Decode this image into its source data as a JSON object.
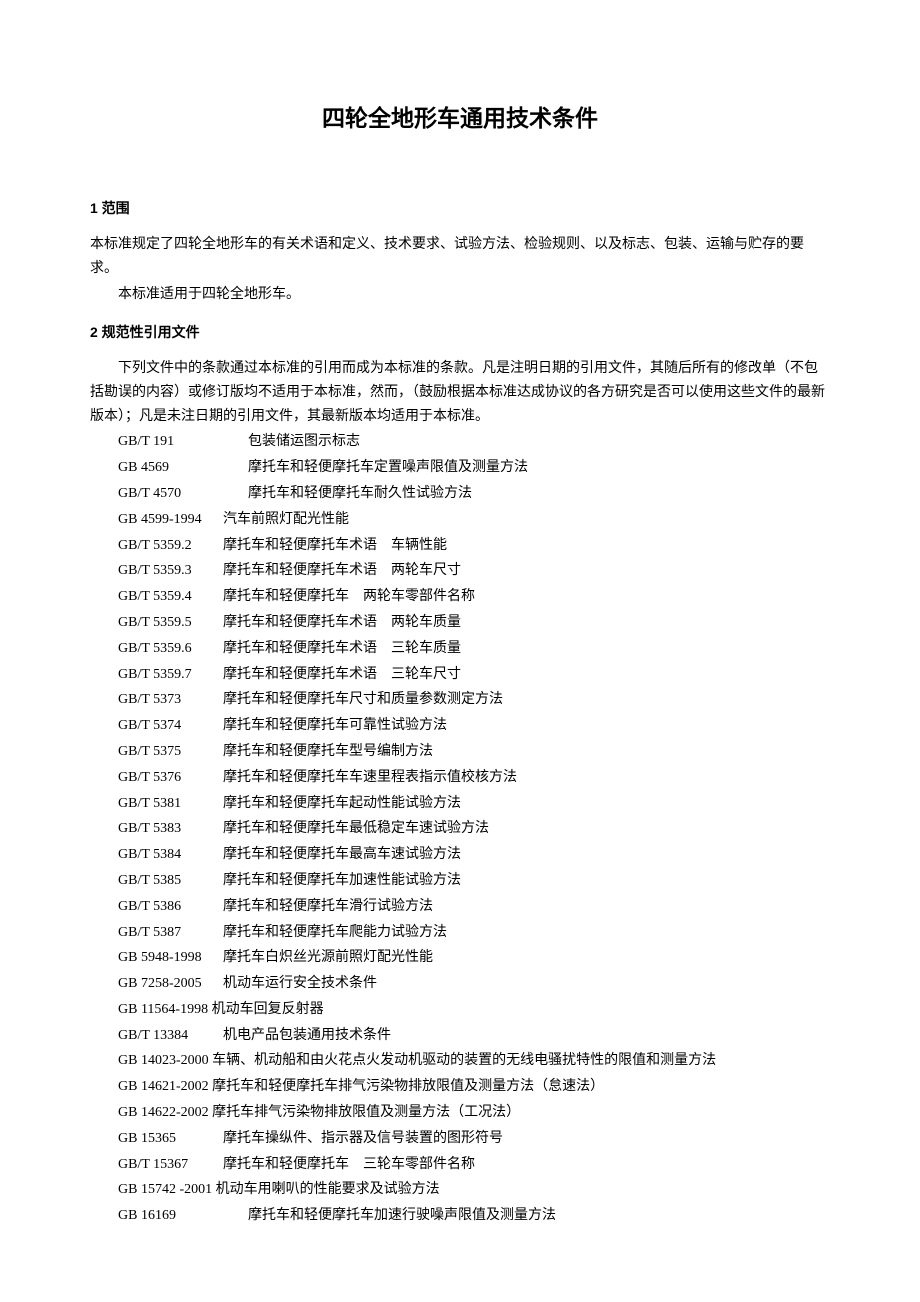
{
  "title": "四轮全地形车通用技术条件",
  "section1": {
    "heading": "1 范围",
    "para1": "本标准规定了四轮全地形车的有关术语和定义、技术要求、试验方法、检验规则、以及标志、包装、运输与贮存的要求。",
    "para2": "本标准适用于四轮全地形车。"
  },
  "section2": {
    "heading": "2 规范性引用文件",
    "para1": "下列文件中的条款通过本标准的引用而成为本标准的条款。凡是注明日期的引用文件，其随后所有的修改单（不包括勘误的内容）或修订版均不适用于本标准，然而，（鼓励根据本标准达成协议的各方研究是否可以使用这些文件的最新版本）；凡是未注日期的引用文件，其最新版本均适用于本标准。",
    "references": [
      {
        "code": "GB/T 191",
        "desc": "包装储运图示标志",
        "wide": true
      },
      {
        "code": "GB 4569",
        "desc": "摩托车和轻便摩托车定置噪声限值及测量方法",
        "wide": true
      },
      {
        "code": "GB/T 4570",
        "desc": "摩托车和轻便摩托车耐久性试验方法",
        "wide": true
      },
      {
        "code": "GB 4599-1994",
        "desc": "汽车前照灯配光性能"
      },
      {
        "code": "GB/T 5359.2",
        "desc": "摩托车和轻便摩托车术语　车辆性能"
      },
      {
        "code": "GB/T 5359.3",
        "desc": "摩托车和轻便摩托车术语　两轮车尺寸"
      },
      {
        "code": "GB/T 5359.4",
        "desc": "摩托车和轻便摩托车　两轮车零部件名称"
      },
      {
        "code": "GB/T 5359.5",
        "desc": "摩托车和轻便摩托车术语　两轮车质量"
      },
      {
        "code": "GB/T 5359.6",
        "desc": "摩托车和轻便摩托车术语　三轮车质量"
      },
      {
        "code": "GB/T 5359.7",
        "desc": "摩托车和轻便摩托车术语　三轮车尺寸"
      },
      {
        "code": "GB/T 5373",
        "desc": "摩托车和轻便摩托车尺寸和质量参数测定方法"
      },
      {
        "code": "GB/T 5374",
        "desc": "摩托车和轻便摩托车可靠性试验方法"
      },
      {
        "code": "GB/T 5375",
        "desc": "摩托车和轻便摩托车型号编制方法"
      },
      {
        "code": "GB/T 5376",
        "desc": "摩托车和轻便摩托车车速里程表指示值校核方法"
      },
      {
        "code": "GB/T 5381",
        "desc": "摩托车和轻便摩托车起动性能试验方法"
      },
      {
        "code": "GB/T 5383",
        "desc": "摩托车和轻便摩托车最低稳定车速试验方法"
      },
      {
        "code": "GB/T 5384",
        "desc": "摩托车和轻便摩托车最高车速试验方法"
      },
      {
        "code": "GB/T 5385",
        "desc": "摩托车和轻便摩托车加速性能试验方法"
      },
      {
        "code": "GB/T 5386",
        "desc": "摩托车和轻便摩托车滑行试验方法"
      },
      {
        "code": "GB/T 5387",
        "desc": "摩托车和轻便摩托车爬能力试验方法"
      },
      {
        "code": "GB 5948-1998",
        "desc": "摩托车白炽丝光源前照灯配光性能"
      },
      {
        "code": "GB 7258-2005",
        "desc": "机动车运行安全技术条件"
      },
      {
        "code": "GB 11564-1998",
        "desc": "机动车回复反射器",
        "nopad": true
      },
      {
        "code": "GB/T 13384",
        "desc": "机电产品包装通用技术条件"
      },
      {
        "code": "GB 14023-2000",
        "desc": "车辆、机动船和由火花点火发动机驱动的装置的无线电骚扰特性的限值和测量方法",
        "nopad": true
      },
      {
        "code": "GB 14621-2002",
        "desc": "摩托车和轻便摩托车排气污染物排放限值及测量方法（怠速法）",
        "nopad": true
      },
      {
        "code": "GB 14622-2002",
        "desc": "摩托车排气污染物排放限值及测量方法（工况法）",
        "nopad": true
      },
      {
        "code": "GB 15365",
        "desc": "摩托车操纵件、指示器及信号装置的图形符号"
      },
      {
        "code": "GB/T 15367",
        "desc": "摩托车和轻便摩托车　三轮车零部件名称"
      },
      {
        "code": "GB 15742 -2001",
        "desc": "机动车用喇叭的性能要求及试验方法",
        "nopad": true
      },
      {
        "code": "GB 16169",
        "desc": "摩托车和轻便摩托车加速行驶噪声限值及测量方法",
        "wide": true
      }
    ]
  }
}
